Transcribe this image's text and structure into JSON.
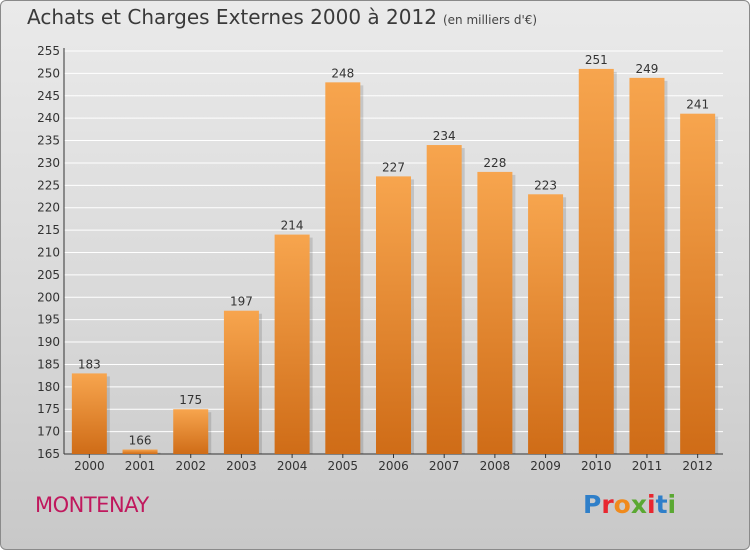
{
  "header": {
    "title": "Achats et Charges Externes 2000 à 2012",
    "subtitle": "(en milliers d'€)"
  },
  "footer": {
    "commune": "MONTENAY",
    "logo": "Proxiti"
  },
  "colors": {
    "bar_top": "#f7a54e",
    "bar_bottom": "#cf6c17",
    "commune": "#c0185d",
    "grid": "#ffffff"
  },
  "chart_data": {
    "type": "bar",
    "categories": [
      "2000",
      "2001",
      "2002",
      "2003",
      "2004",
      "2005",
      "2006",
      "2007",
      "2008",
      "2009",
      "2010",
      "2011",
      "2012"
    ],
    "values": [
      183,
      166,
      175,
      197,
      214,
      248,
      227,
      234,
      228,
      223,
      251,
      249,
      241
    ],
    "ylim": [
      165,
      255
    ],
    "yticks": [
      165,
      170,
      175,
      180,
      185,
      190,
      195,
      200,
      205,
      210,
      215,
      220,
      225,
      230,
      235,
      240,
      245,
      250,
      255
    ],
    "grid": true,
    "data_labels": true
  }
}
